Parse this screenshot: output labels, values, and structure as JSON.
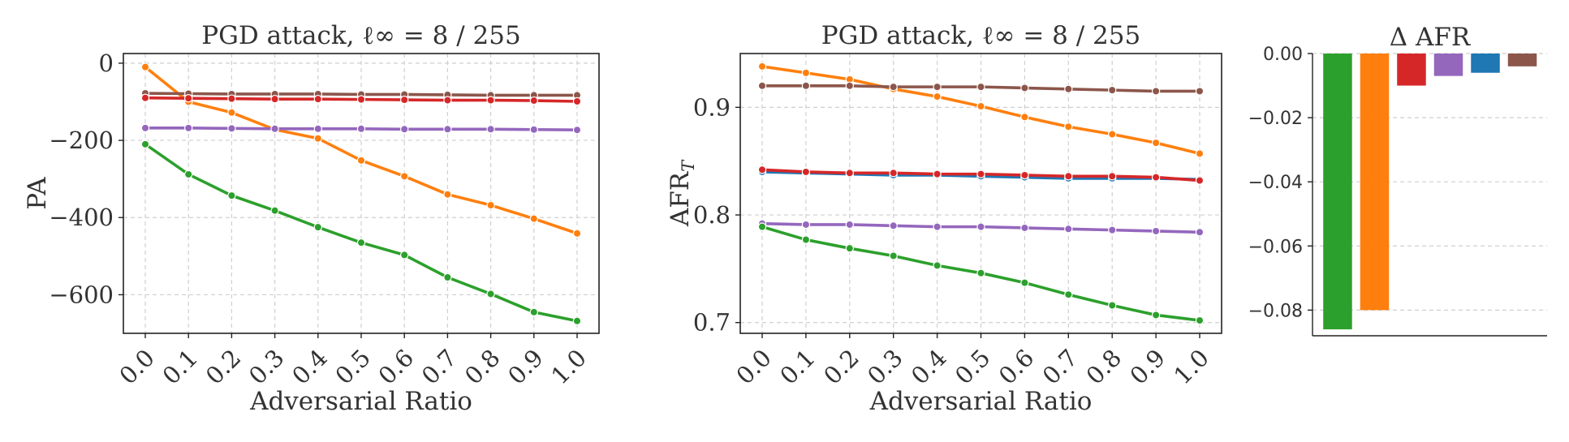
{
  "series_colors": {
    "green": "#2ca02c",
    "orange": "#ff7f0e",
    "red": "#d62728",
    "purple": "#9467bd",
    "blue": "#1f77b4",
    "brown": "#8c564b"
  },
  "chart_data": [
    {
      "type": "line",
      "title": "PGD attack, ℓ∞ = 8 / 255",
      "xlabel": "Adversarial Ratio",
      "ylabel": "PA",
      "x": [
        0.0,
        0.1,
        0.2,
        0.3,
        0.4,
        0.5,
        0.6,
        0.7,
        0.8,
        0.9,
        1.0
      ],
      "x_tick_labels": [
        "0.0",
        "0.1",
        "0.2",
        "0.3",
        "0.4",
        "0.5",
        "0.6",
        "0.7",
        "0.8",
        "0.9",
        "1.0"
      ],
      "y_ticks": [
        0,
        -200,
        -400,
        -600
      ],
      "y_tick_labels": [
        "0",
        "−200",
        "−400",
        "−600"
      ],
      "ylim": [
        -700,
        25
      ],
      "grid": true,
      "series": [
        {
          "color": "#2ca02c",
          "values": [
            -210,
            -288,
            -343,
            -382,
            -425,
            -465,
            -497,
            -555,
            -598,
            -645,
            -668
          ]
        },
        {
          "color": "#ff7f0e",
          "values": [
            -10,
            -100,
            -128,
            -172,
            -195,
            -252,
            -293,
            -340,
            -368,
            -403,
            -441
          ]
        },
        {
          "color": "#8c564b",
          "values": [
            -78,
            -79,
            -80,
            -80,
            -80,
            -81,
            -81,
            -82,
            -83,
            -83,
            -83
          ]
        },
        {
          "color": "#d62728",
          "values": [
            -90,
            -91,
            -92,
            -93,
            -93,
            -94,
            -95,
            -96,
            -96,
            -97,
            -99
          ]
        },
        {
          "color": "#9467bd",
          "values": [
            -168,
            -168,
            -169,
            -170,
            -170,
            -170,
            -171,
            -171,
            -171,
            -172,
            -173
          ]
        }
      ]
    },
    {
      "type": "line",
      "title": "PGD attack, ℓ∞ = 8 / 255",
      "xlabel": "Adversarial Ratio",
      "ylabel": "AFR",
      "ylabel_sub": "T",
      "x": [
        0.0,
        0.1,
        0.2,
        0.3,
        0.4,
        0.5,
        0.6,
        0.7,
        0.8,
        0.9,
        1.0
      ],
      "x_tick_labels": [
        "0.0",
        "0.1",
        "0.2",
        "0.3",
        "0.4",
        "0.5",
        "0.6",
        "0.7",
        "0.8",
        "0.9",
        "1.0"
      ],
      "y_ticks": [
        0.7,
        0.8,
        0.9
      ],
      "y_tick_labels": [
        "0.7",
        "0.8",
        "0.9"
      ],
      "ylim": [
        0.69,
        0.95
      ],
      "grid": true,
      "series": [
        {
          "color": "#ff7f0e",
          "values": [
            0.938,
            0.932,
            0.926,
            0.917,
            0.91,
            0.901,
            0.891,
            0.882,
            0.875,
            0.867,
            0.857
          ]
        },
        {
          "color": "#8c564b",
          "values": [
            0.92,
            0.92,
            0.92,
            0.919,
            0.919,
            0.919,
            0.918,
            0.917,
            0.916,
            0.915,
            0.915
          ]
        },
        {
          "color": "#1f77b4",
          "values": [
            0.84,
            0.839,
            0.838,
            0.837,
            0.837,
            0.836,
            0.835,
            0.834,
            0.834,
            0.834,
            0.833
          ]
        },
        {
          "color": "#d62728",
          "values": [
            0.842,
            0.84,
            0.839,
            0.839,
            0.838,
            0.838,
            0.837,
            0.836,
            0.836,
            0.835,
            0.832
          ]
        },
        {
          "color": "#9467bd",
          "values": [
            0.792,
            0.791,
            0.791,
            0.79,
            0.789,
            0.789,
            0.788,
            0.787,
            0.786,
            0.785,
            0.784
          ]
        },
        {
          "color": "#2ca02c",
          "values": [
            0.789,
            0.777,
            0.769,
            0.762,
            0.753,
            0.746,
            0.737,
            0.726,
            0.716,
            0.707,
            0.702
          ]
        }
      ]
    },
    {
      "type": "bar",
      "title": "Δ AFR",
      "y_ticks": [
        0.0,
        -0.02,
        -0.04,
        -0.06,
        -0.08
      ],
      "y_tick_labels": [
        "0.00",
        "−0.02",
        "−0.04",
        "−0.06",
        "−0.08"
      ],
      "ylim": [
        -0.088,
        0.0
      ],
      "grid": true,
      "bars": [
        {
          "color": "#2ca02c",
          "value": -0.086
        },
        {
          "color": "#ff7f0e",
          "value": -0.08
        },
        {
          "color": "#d62728",
          "value": -0.01
        },
        {
          "color": "#9467bd",
          "value": -0.007
        },
        {
          "color": "#1f77b4",
          "value": -0.006
        },
        {
          "color": "#8c564b",
          "value": -0.004
        }
      ]
    }
  ]
}
